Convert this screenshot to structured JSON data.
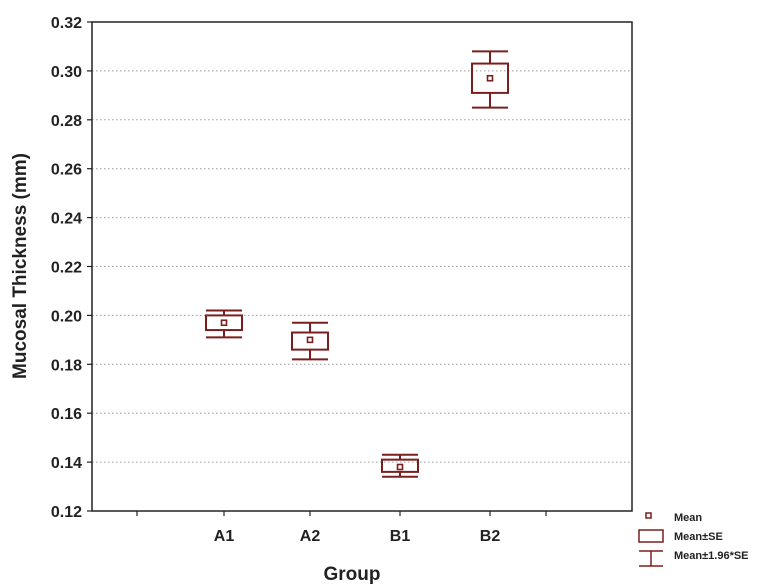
{
  "chart_data": {
    "type": "box",
    "title": "",
    "xlabel": "Group",
    "ylabel": "Mucosal Thickness (mm)",
    "ylim": [
      0.12,
      0.32
    ],
    "yticks": [
      "0.12",
      "0.14",
      "0.16",
      "0.18",
      "0.20",
      "0.22",
      "0.24",
      "0.26",
      "0.28",
      "0.30",
      "0.32"
    ],
    "grid": "horizontal dotted",
    "legend_position": "bottom-right, outside plot",
    "categories": [
      "A1",
      "A2",
      "B1",
      "B2"
    ],
    "series": [
      {
        "mean": [
          0.197,
          0.19,
          0.138,
          0.297
        ],
        "se_low": [
          0.194,
          0.186,
          0.136,
          0.291
        ],
        "se_high": [
          0.2,
          0.193,
          0.141,
          0.303
        ],
        "ci_low": [
          0.191,
          0.182,
          0.134,
          0.285
        ],
        "ci_high": [
          0.202,
          0.197,
          0.143,
          0.308
        ]
      }
    ],
    "legend": [
      "Mean",
      "Mean±SE",
      "Mean±1.96*SE"
    ],
    "color": "#7a1f1f"
  }
}
